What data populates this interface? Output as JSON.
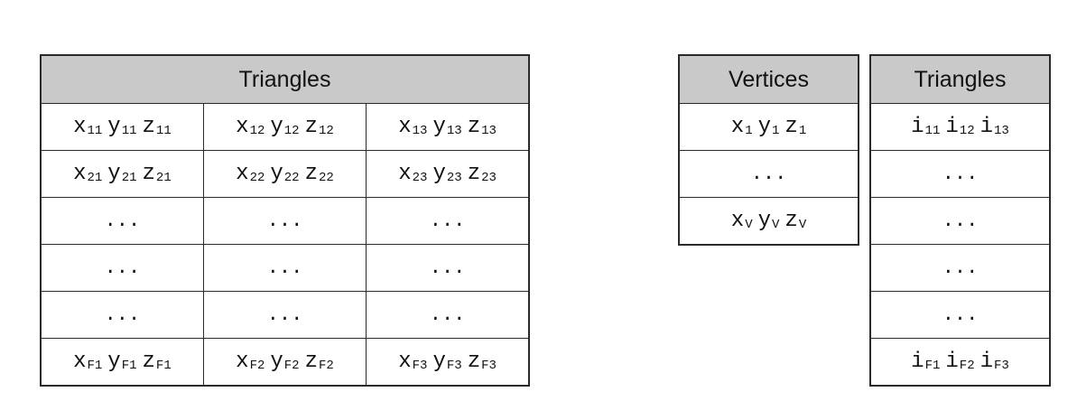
{
  "soup_table": {
    "header": "Triangles",
    "rows": [
      [
        [
          [
            "x",
            "11"
          ],
          [
            "y",
            "11"
          ],
          [
            "z",
            "11"
          ]
        ],
        [
          [
            "x",
            "12"
          ],
          [
            "y",
            "12"
          ],
          [
            "z",
            "12"
          ]
        ],
        [
          [
            "x",
            "13"
          ],
          [
            "y",
            "13"
          ],
          [
            "z",
            "13"
          ]
        ]
      ],
      [
        [
          [
            "x",
            "21"
          ],
          [
            "y",
            "21"
          ],
          [
            "z",
            "21"
          ]
        ],
        [
          [
            "x",
            "22"
          ],
          [
            "y",
            "22"
          ],
          [
            "z",
            "22"
          ]
        ],
        [
          [
            "x",
            "23"
          ],
          [
            "y",
            "23"
          ],
          [
            "z",
            "23"
          ]
        ]
      ],
      [
        "...",
        "...",
        "..."
      ],
      [
        "...",
        "...",
        "..."
      ],
      [
        "...",
        "...",
        "..."
      ],
      [
        [
          [
            "x",
            "F1"
          ],
          [
            "y",
            "F1"
          ],
          [
            "z",
            "F1"
          ]
        ],
        [
          [
            "x",
            "F2"
          ],
          [
            "y",
            "F2"
          ],
          [
            "z",
            "F2"
          ]
        ],
        [
          [
            "x",
            "F3"
          ],
          [
            "y",
            "F3"
          ],
          [
            "z",
            "F3"
          ]
        ]
      ]
    ]
  },
  "vertices_table": {
    "header": "Vertices",
    "rows": [
      [
        [
          "x",
          "1"
        ],
        [
          "y",
          "1"
        ],
        [
          "z",
          "1"
        ]
      ],
      "...",
      [
        [
          "x",
          "V"
        ],
        [
          "y",
          "V"
        ],
        [
          "z",
          "V"
        ]
      ]
    ]
  },
  "indexed_triangles_table": {
    "header": "Triangles",
    "rows": [
      [
        [
          "i",
          "11"
        ],
        [
          "i",
          "12"
        ],
        [
          "i",
          "13"
        ]
      ],
      "...",
      "...",
      "...",
      "...",
      [
        [
          "i",
          "F1"
        ],
        [
          "i",
          "F2"
        ],
        [
          "i",
          "F3"
        ]
      ]
    ]
  }
}
